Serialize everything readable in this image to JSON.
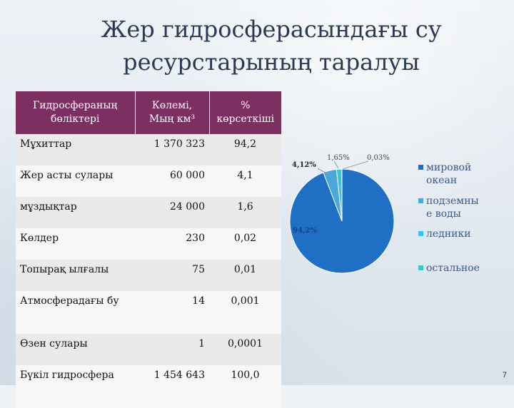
{
  "title_line1": "Жер гидросферасындағы су",
  "title_line2": "ресурстарының таралуы",
  "table": {
    "headers": [
      "Гидросфераның бөліктері",
      "Көлемі, Мың км³",
      "% көрсеткіші"
    ],
    "rows": [
      {
        "name": "Мұхиттар",
        "volume": "1 370 323",
        "percent": "94,2"
      },
      {
        "name": "Жер асты сулары",
        "volume": "60 000",
        "percent": "4,1"
      },
      {
        "name": "мұздықтар",
        "volume": "24 000",
        "percent": "1,6"
      },
      {
        "name": "Көлдер",
        "volume": "230",
        "percent": "0,02"
      },
      {
        "name": "Топырақ ылғалы",
        "volume": "75",
        "percent": "0,01"
      },
      {
        "name": "Атмосферадағы бу",
        "volume": "14",
        "percent": "0,001"
      },
      {
        "name": "Өзен сулары",
        "volume": "1",
        "percent": "0,0001"
      },
      {
        "name": "Бүкіл гидросфера",
        "volume": "1 454 643",
        "percent": "100,0"
      }
    ]
  },
  "chart_data": {
    "type": "pie",
    "categories": [
      "мировой океан",
      "подземные воды",
      "ледники",
      "остальное"
    ],
    "values": [
      94.2,
      4.12,
      1.65,
      0.03
    ],
    "data_labels": [
      "94,2%",
      "4,12%",
      "1,65%",
      "0,03%"
    ],
    "colors": [
      "#1f6fc5",
      "#4aa8d8",
      "#36c4e8",
      "#3ec9bd"
    ],
    "legend": "right"
  },
  "page_number": "7"
}
